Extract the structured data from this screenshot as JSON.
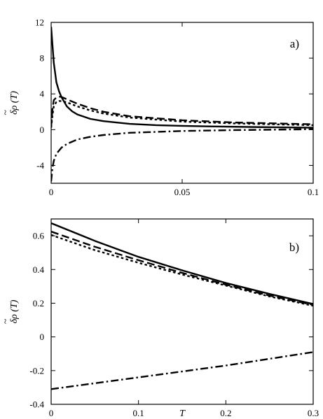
{
  "chart_data": [
    {
      "type": "line",
      "panel_label": "a)",
      "xlabel": "",
      "ylabel": "δρ (T)",
      "ylabel_accent": "~",
      "xlim": [
        0,
        0.1
      ],
      "ylim": [
        -6,
        12
      ],
      "xticks": [
        0,
        0.05,
        0.1
      ],
      "xtick_labels": [
        "0",
        "0.05",
        "0.1"
      ],
      "yticks": [
        -4,
        0,
        4,
        8,
        12
      ],
      "ytick_labels": [
        "-4",
        "0",
        "4",
        "8",
        "12"
      ],
      "grid": false,
      "legend": "none",
      "series": [
        {
          "style": "solid",
          "x": [
            0.0,
            0.0005,
            0.001,
            0.002,
            0.003,
            0.004,
            0.006,
            0.008,
            0.01,
            0.015,
            0.02,
            0.03,
            0.04,
            0.05,
            0.06,
            0.08,
            0.1
          ],
          "y": [
            11.5,
            9.5,
            7.5,
            5.3,
            4.3,
            3.6,
            2.6,
            2.05,
            1.7,
            1.2,
            0.95,
            0.65,
            0.5,
            0.42,
            0.36,
            0.28,
            0.22
          ]
        },
        {
          "style": "dashed",
          "x": [
            0.0,
            0.0005,
            0.001,
            0.002,
            0.003,
            0.004,
            0.006,
            0.01,
            0.015,
            0.02,
            0.03,
            0.05,
            0.07,
            0.1
          ],
          "y": [
            0.3,
            2.3,
            3.3,
            3.6,
            3.7,
            3.65,
            3.4,
            2.9,
            2.4,
            2.0,
            1.5,
            1.05,
            0.8,
            0.6
          ]
        },
        {
          "style": "dotted",
          "x": [
            0.0,
            0.0005,
            0.001,
            0.002,
            0.003,
            0.004,
            0.006,
            0.01,
            0.015,
            0.02,
            0.03,
            0.05,
            0.07,
            0.1
          ],
          "y": [
            0.2,
            1.6,
            2.6,
            3.1,
            3.2,
            3.2,
            3.05,
            2.6,
            2.15,
            1.8,
            1.35,
            0.9,
            0.7,
            0.5
          ]
        },
        {
          "style": "dashdot",
          "x": [
            0.0,
            0.0005,
            0.001,
            0.002,
            0.004,
            0.006,
            0.01,
            0.015,
            0.02,
            0.03,
            0.05,
            0.07,
            0.1
          ],
          "y": [
            -5.8,
            -4.3,
            -3.5,
            -2.7,
            -2.0,
            -1.6,
            -1.1,
            -0.8,
            -0.6,
            -0.35,
            -0.15,
            -0.05,
            0.05
          ]
        }
      ]
    },
    {
      "type": "line",
      "panel_label": "b)",
      "xlabel": "T",
      "ylabel": "δρ (T)",
      "ylabel_accent": "~",
      "xlim": [
        0,
        0.3
      ],
      "ylim": [
        -0.4,
        0.7
      ],
      "xticks": [
        0,
        0.1,
        0.2,
        0.3
      ],
      "xtick_labels": [
        "0",
        "0.1",
        "0.2",
        "0.3"
      ],
      "yticks": [
        -0.4,
        -0.2,
        0,
        0.2,
        0.4,
        0.6
      ],
      "ytick_labels": [
        "-0.4",
        "-0.2",
        "0",
        "0.2",
        "0.4",
        "0.6"
      ],
      "grid": false,
      "legend": "none",
      "series": [
        {
          "style": "solid",
          "x": [
            0,
            0.05,
            0.1,
            0.15,
            0.2,
            0.25,
            0.3
          ],
          "y": [
            0.675,
            0.57,
            0.475,
            0.395,
            0.32,
            0.255,
            0.195
          ]
        },
        {
          "style": "dashed",
          "x": [
            0,
            0.05,
            0.1,
            0.15,
            0.2,
            0.25,
            0.3
          ],
          "y": [
            0.625,
            0.535,
            0.455,
            0.38,
            0.31,
            0.245,
            0.19
          ]
        },
        {
          "style": "dotted",
          "x": [
            0,
            0.05,
            0.1,
            0.15,
            0.2,
            0.25,
            0.3
          ],
          "y": [
            0.605,
            0.515,
            0.44,
            0.37,
            0.305,
            0.24,
            0.185
          ]
        },
        {
          "style": "dashdot",
          "x": [
            0,
            0.05,
            0.1,
            0.15,
            0.2,
            0.25,
            0.3
          ],
          "y": [
            -0.31,
            -0.275,
            -0.24,
            -0.205,
            -0.17,
            -0.13,
            -0.09
          ]
        }
      ]
    }
  ]
}
